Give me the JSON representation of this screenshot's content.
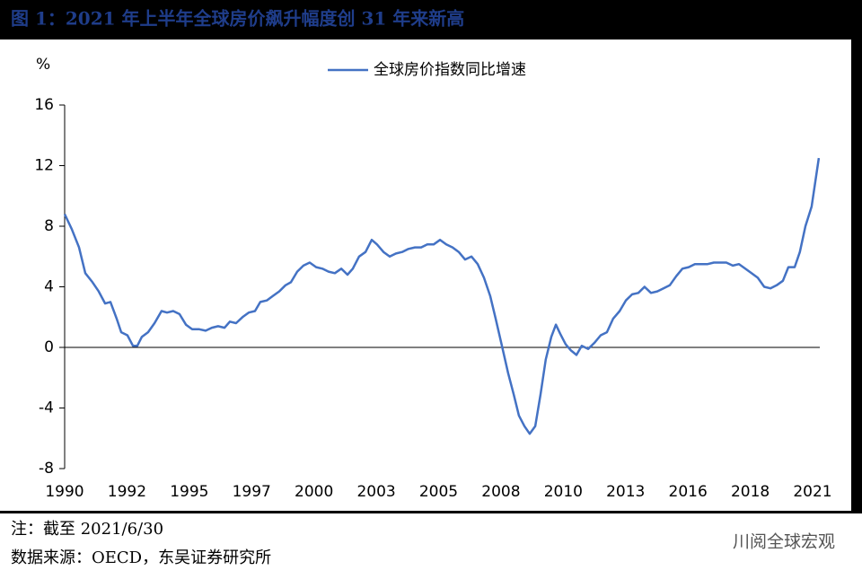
{
  "chart_data": {
    "type": "line",
    "title": "图 1：2021 年上半年全球房价飙升幅度创 31 年来新高",
    "y_label": "%",
    "note": "注：截至 2021/6/30",
    "source": "数据来源：OECD，东吴证券研究所",
    "watermark": "川阅全球宏观",
    "xlim": [
      1990,
      2021.5
    ],
    "ylim": [
      -8,
      16
    ],
    "yticks": [
      -8,
      -4,
      0,
      4,
      8,
      12,
      16
    ],
    "xticks": [
      {
        "value": 1990,
        "label": "1990"
      },
      {
        "value": 1992.6,
        "label": "1992"
      },
      {
        "value": 1995.2,
        "label": "1995"
      },
      {
        "value": 1997.8,
        "label": "1997"
      },
      {
        "value": 2000.4,
        "label": "2000"
      },
      {
        "value": 2003.0,
        "label": "2003"
      },
      {
        "value": 2005.6,
        "label": "2005"
      },
      {
        "value": 2008.2,
        "label": "2008"
      },
      {
        "value": 2010.8,
        "label": "2010"
      },
      {
        "value": 2013.4,
        "label": "2013"
      },
      {
        "value": 2016.0,
        "label": "2016"
      },
      {
        "value": 2018.6,
        "label": "2018"
      },
      {
        "value": 2021.2,
        "label": "2021"
      }
    ],
    "legend": "top",
    "x": [
      1990.0,
      1990.3,
      1990.6,
      1990.86,
      1991.16,
      1991.42,
      1991.69,
      1991.91,
      1992.17,
      1992.36,
      1992.62,
      1992.85,
      1993.03,
      1993.22,
      1993.48,
      1993.75,
      1994.04,
      1994.27,
      1994.53,
      1994.79,
      1995.06,
      1995.32,
      1995.62,
      1995.88,
      1996.14,
      1996.4,
      1996.67,
      1996.89,
      1997.15,
      1997.42,
      1997.68,
      1997.94,
      1998.16,
      1998.43,
      1998.69,
      1998.95,
      1999.21,
      1999.44,
      1999.7,
      1999.96,
      2000.22,
      2000.49,
      2000.75,
      2001.01,
      2001.27,
      2001.54,
      2001.8,
      2002.02,
      2002.28,
      2002.55,
      2002.81,
      2003.03,
      2003.3,
      2003.56,
      2003.82,
      2004.08,
      2004.34,
      2004.61,
      2004.87,
      2005.13,
      2005.39,
      2005.66,
      2005.92,
      2006.18,
      2006.44,
      2006.7,
      2006.97,
      2007.23,
      2007.49,
      2007.75,
      2007.98,
      2008.24,
      2008.5,
      2008.73,
      2008.95,
      2009.18,
      2009.4,
      2009.63,
      2009.85,
      2010.07,
      2010.3,
      2010.49,
      2010.67,
      2010.9,
      2011.12,
      2011.35,
      2011.57,
      2011.84,
      2012.1,
      2012.36,
      2012.62,
      2012.88,
      2013.15,
      2013.41,
      2013.67,
      2013.93,
      2014.19,
      2014.46,
      2014.72,
      2014.98,
      2015.24,
      2015.51,
      2015.77,
      2016.03,
      2016.29,
      2016.55,
      2016.82,
      2017.08,
      2017.34,
      2017.6,
      2017.87,
      2018.13,
      2018.39,
      2018.65,
      2018.91,
      2019.18,
      2019.44,
      2019.7,
      2019.96,
      2020.19,
      2020.45,
      2020.67,
      2020.9,
      2021.16,
      2021.46
    ],
    "series": [
      {
        "name": "全球房价指数同比增速",
        "color": "#4472c4",
        "values": [
          8.8,
          7.8,
          6.6,
          4.9,
          4.3,
          3.7,
          2.9,
          3.0,
          1.9,
          1.0,
          0.8,
          0.1,
          0.1,
          0.7,
          1.0,
          1.6,
          2.4,
          2.3,
          2.4,
          2.2,
          1.5,
          1.2,
          1.2,
          1.1,
          1.3,
          1.4,
          1.3,
          1.7,
          1.6,
          2.0,
          2.3,
          2.4,
          3.0,
          3.1,
          3.4,
          3.7,
          4.1,
          4.3,
          5.0,
          5.4,
          5.6,
          5.3,
          5.2,
          5.0,
          4.9,
          5.2,
          4.8,
          5.2,
          6.0,
          6.3,
          7.1,
          6.8,
          6.3,
          6.0,
          6.2,
          6.3,
          6.5,
          6.6,
          6.6,
          6.8,
          6.8,
          7.1,
          6.8,
          6.6,
          6.3,
          5.8,
          6.0,
          5.5,
          4.6,
          3.4,
          1.9,
          0.1,
          -1.7,
          -3.1,
          -4.5,
          -5.2,
          -5.7,
          -5.2,
          -3.1,
          -0.8,
          0.7,
          1.5,
          0.9,
          0.2,
          -0.2,
          -0.5,
          0.1,
          -0.1,
          0.3,
          0.8,
          1.0,
          1.9,
          2.4,
          3.1,
          3.5,
          3.6,
          4.0,
          3.6,
          3.7,
          3.9,
          4.1,
          4.7,
          5.2,
          5.3,
          5.5,
          5.5,
          5.5,
          5.6,
          5.6,
          5.6,
          5.4,
          5.5,
          5.2,
          4.9,
          4.6,
          4.0,
          3.9,
          4.1,
          4.4,
          5.3,
          5.3,
          6.3,
          8.0,
          9.3,
          12.5
        ]
      }
    ]
  }
}
